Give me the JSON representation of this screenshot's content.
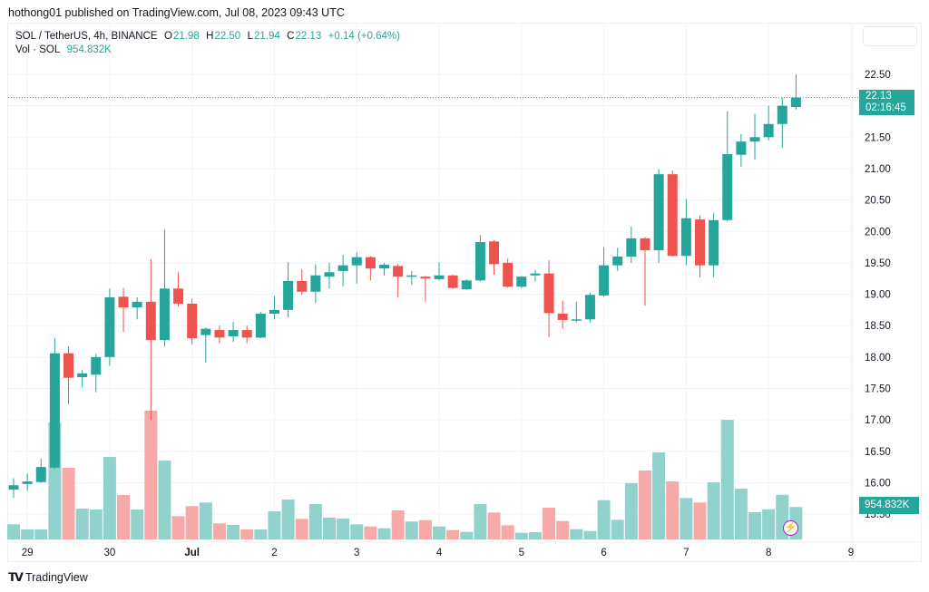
{
  "header": {
    "published": "hothong01 published on TradingView.com, Jul 08, 2023 09:43 UTC"
  },
  "legend": {
    "symbol": "SOL / TetherUS, 4h, BINANCE",
    "o_label": "O",
    "o": "21.98",
    "h_label": "H",
    "h": "22.50",
    "l_label": "L",
    "l": "21.94",
    "c_label": "C",
    "c": "22.13",
    "change": "+0.14 (+0.64%)",
    "vol_label": "Vol · SOL",
    "vol": "954.832K"
  },
  "price_tag": {
    "price": "22.13",
    "countdown": "02:16:45"
  },
  "vol_tag": "954.832K",
  "brand": {
    "logo": "TV",
    "name": "TradingView"
  },
  "colors": {
    "up": "#26a69a",
    "down": "#ef5350",
    "up_vol": "#92d2cc",
    "down_vol": "#f7a9a7",
    "grid": "#f0f3fa"
  },
  "chart_data": {
    "type": "candlestick",
    "title": "SOL / TetherUS, 4h, BINANCE",
    "interval": "4h",
    "ylim": [
      15.2,
      22.9
    ],
    "y_ticks": [
      "22.50",
      "21.50",
      "21.00",
      "20.50",
      "20.00",
      "19.50",
      "19.00",
      "18.50",
      "18.00",
      "17.50",
      "17.00",
      "16.50",
      "16.00",
      "15.50"
    ],
    "x_ticks": [
      {
        "label": "29",
        "index": 1
      },
      {
        "label": "30",
        "index": 7
      },
      {
        "label": "Jul",
        "index": 13,
        "bold": true
      },
      {
        "label": "2",
        "index": 19
      },
      {
        "label": "3",
        "index": 25
      },
      {
        "label": "4",
        "index": 31
      },
      {
        "label": "5",
        "index": 37
      },
      {
        "label": "6",
        "index": 43
      },
      {
        "label": "7",
        "index": 49
      },
      {
        "label": "8",
        "index": 55
      },
      {
        "label": "9",
        "index": 61
      }
    ],
    "columns": [
      "open",
      "high",
      "low",
      "close",
      "volume_k"
    ],
    "candles": [
      [
        15.89,
        16.07,
        15.76,
        15.96,
        447
      ],
      [
        15.98,
        16.15,
        15.87,
        16.02,
        294
      ],
      [
        16.01,
        16.38,
        16.0,
        16.25,
        294
      ],
      [
        16.24,
        18.3,
        16.22,
        18.06,
        3451
      ],
      [
        18.06,
        18.17,
        17.25,
        17.67,
        2113
      ],
      [
        17.68,
        17.8,
        17.52,
        17.74,
        910
      ],
      [
        17.72,
        18.05,
        17.44,
        18.0,
        883
      ],
      [
        18.0,
        19.09,
        17.86,
        18.95,
        2434
      ],
      [
        18.96,
        19.1,
        18.4,
        18.79,
        1311
      ],
      [
        18.79,
        18.95,
        18.6,
        18.88,
        883
      ],
      [
        18.88,
        19.56,
        17.0,
        18.27,
        3799
      ],
      [
        18.27,
        20.03,
        18.17,
        19.09,
        2327
      ],
      [
        19.09,
        19.35,
        18.8,
        18.85,
        687
      ],
      [
        18.85,
        18.93,
        18.2,
        18.3,
        982
      ],
      [
        18.35,
        18.47,
        17.91,
        18.45,
        1089
      ],
      [
        18.43,
        18.5,
        18.22,
        18.31,
        473
      ],
      [
        18.33,
        18.56,
        18.24,
        18.43,
        428
      ],
      [
        18.43,
        18.5,
        18.22,
        18.31,
        294
      ],
      [
        18.31,
        18.72,
        18.3,
        18.69,
        294
      ],
      [
        18.69,
        18.97,
        18.6,
        18.75,
        829
      ],
      [
        18.75,
        19.51,
        18.63,
        19.21,
        1177
      ],
      [
        19.21,
        19.4,
        18.99,
        19.04,
        607
      ],
      [
        19.04,
        19.48,
        18.86,
        19.3,
        1043
      ],
      [
        19.28,
        19.5,
        19.09,
        19.35,
        642
      ],
      [
        19.37,
        19.63,
        19.13,
        19.46,
        615
      ],
      [
        19.46,
        19.67,
        19.17,
        19.59,
        447
      ],
      [
        19.59,
        19.61,
        19.22,
        19.41,
        383
      ],
      [
        19.41,
        19.5,
        19.3,
        19.47,
        329
      ],
      [
        19.45,
        19.48,
        18.95,
        19.28,
        856
      ],
      [
        19.29,
        19.37,
        19.15,
        19.3,
        527
      ],
      [
        19.28,
        19.29,
        18.88,
        19.25,
        570
      ],
      [
        19.24,
        19.51,
        19.22,
        19.3,
        383
      ],
      [
        19.3,
        19.31,
        19.08,
        19.1,
        276
      ],
      [
        19.08,
        19.24,
        19.07,
        19.22,
        222
      ],
      [
        19.22,
        19.94,
        19.2,
        19.83,
        1043
      ],
      [
        19.84,
        19.86,
        19.31,
        19.48,
        794
      ],
      [
        19.5,
        19.57,
        19.1,
        19.12,
        420
      ],
      [
        19.12,
        19.29,
        19.1,
        19.28,
        195
      ],
      [
        19.3,
        19.39,
        19.2,
        19.33,
        214
      ],
      [
        19.33,
        19.54,
        18.32,
        18.7,
        936
      ],
      [
        18.69,
        18.9,
        18.45,
        18.59,
        543
      ],
      [
        18.58,
        18.88,
        18.55,
        18.6,
        302
      ],
      [
        18.6,
        19.02,
        18.55,
        18.99,
        249
      ],
      [
        18.98,
        19.75,
        18.96,
        19.46,
        1158
      ],
      [
        19.46,
        19.74,
        19.37,
        19.6,
        580
      ],
      [
        19.6,
        20.08,
        19.5,
        19.89,
        1659
      ],
      [
        19.89,
        19.91,
        18.82,
        19.7,
        2033
      ],
      [
        19.7,
        20.99,
        19.5,
        20.91,
        2568
      ],
      [
        20.91,
        20.97,
        19.6,
        19.61,
        1712
      ],
      [
        19.61,
        20.52,
        19.46,
        20.21,
        1222
      ],
      [
        20.19,
        20.26,
        19.27,
        19.46,
        1089
      ],
      [
        19.46,
        20.29,
        19.27,
        20.18,
        1685
      ],
      [
        20.18,
        21.91,
        20.16,
        21.23,
        3531
      ],
      [
        21.22,
        21.55,
        21.03,
        21.43,
        1498
      ],
      [
        21.43,
        21.87,
        21.14,
        21.5,
        803
      ],
      [
        21.5,
        22.0,
        21.45,
        21.71,
        891
      ],
      [
        21.71,
        22.13,
        21.33,
        22.0,
        1319
      ],
      [
        21.98,
        22.5,
        21.94,
        22.13,
        955
      ]
    ],
    "last_price": 22.13,
    "last_volume": "954.832K"
  }
}
